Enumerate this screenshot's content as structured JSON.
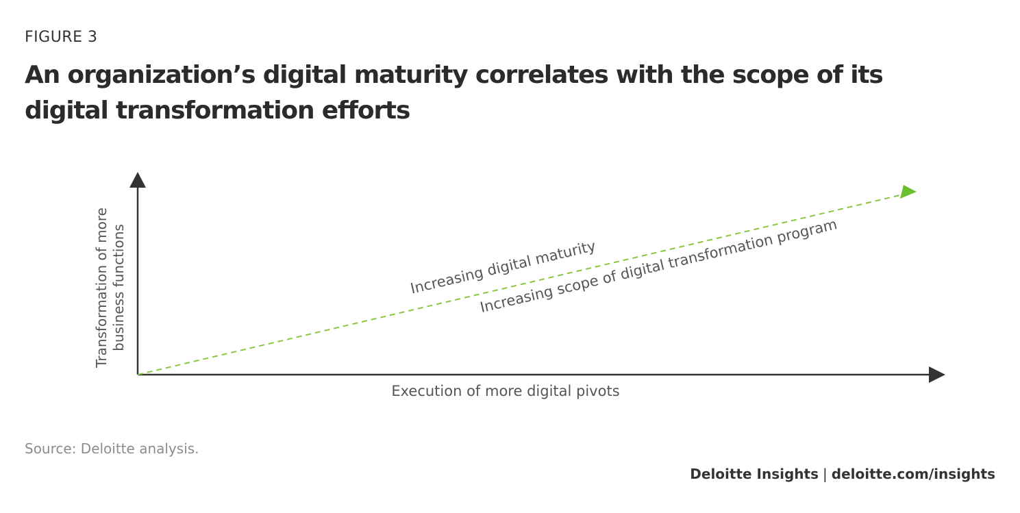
{
  "figure_label": "FIGURE 3",
  "title": "An organization’s digital maturity correlates with the scope of its digital transformation efforts",
  "diagram": {
    "y_axis_label_line1": "Transformation of more",
    "y_axis_label_line2": "business functions",
    "x_axis_label": "Execution of more digital pivots",
    "trend_label_upper": "Increasing digital maturity",
    "trend_label_lower": "Increasing scope of digital transformation program"
  },
  "colors": {
    "axis": "#333333",
    "trend_line": "#8cc63f",
    "trend_arrow": "#6cbf2f",
    "label_text": "#555555"
  },
  "source": "Source: Deloitte analysis.",
  "credit": {
    "brand": "Deloitte Insights",
    "separator": "|",
    "url": "deloitte.com/insights"
  }
}
